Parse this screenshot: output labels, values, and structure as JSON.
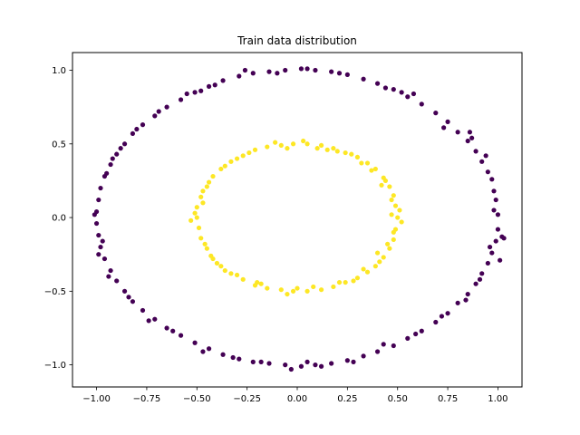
{
  "chart_data": {
    "type": "scatter",
    "title": "Train data distribution",
    "xlabel": "",
    "ylabel": "",
    "xlim": [
      -1.12,
      1.12
    ],
    "ylim": [
      -1.15,
      1.12
    ],
    "x_ticks": [
      {
        "value": -1.0,
        "label": "−1.00"
      },
      {
        "value": -0.75,
        "label": "−0.75"
      },
      {
        "value": -0.5,
        "label": "−0.50"
      },
      {
        "value": -0.25,
        "label": "−0.25"
      },
      {
        "value": 0.0,
        "label": "0.00"
      },
      {
        "value": 0.25,
        "label": "0.25"
      },
      {
        "value": 0.5,
        "label": "0.50"
      },
      {
        "value": 0.75,
        "label": "0.75"
      },
      {
        "value": 1.0,
        "label": "1.00"
      }
    ],
    "y_ticks": [
      {
        "value": -1.0,
        "label": "−1.0"
      },
      {
        "value": -0.5,
        "label": "−0.5"
      },
      {
        "value": 0.0,
        "label": "0.0"
      },
      {
        "value": 0.5,
        "label": "0.5"
      },
      {
        "value": 1.0,
        "label": "1.0"
      }
    ],
    "grid": false,
    "legend": "none",
    "series": [
      {
        "color": "#440154",
        "points": [
          [
            1.0,
            0.02
          ],
          [
            0.99,
            0.12
          ],
          [
            0.98,
            0.18
          ],
          [
            0.97,
            0.26
          ],
          [
            0.95,
            0.31
          ],
          [
            0.92,
            0.38
          ],
          [
            0.89,
            0.45
          ],
          [
            0.85,
            0.52
          ],
          [
            0.8,
            0.58
          ],
          [
            0.75,
            0.65
          ],
          [
            0.69,
            0.71
          ],
          [
            0.62,
            0.77
          ],
          [
            0.55,
            0.82
          ],
          [
            0.48,
            0.87
          ],
          [
            0.4,
            0.91
          ],
          [
            0.33,
            0.94
          ],
          [
            0.25,
            0.97
          ],
          [
            0.17,
            0.99
          ],
          [
            0.09,
            1.0
          ],
          [
            0.02,
            1.01
          ],
          [
            -0.06,
            1.0
          ],
          [
            -0.14,
            0.99
          ],
          [
            -0.22,
            0.98
          ],
          [
            -0.29,
            0.96
          ],
          [
            -0.37,
            0.93
          ],
          [
            -0.44,
            0.89
          ],
          [
            -0.51,
            0.85
          ],
          [
            -0.58,
            0.8
          ],
          [
            -0.65,
            0.75
          ],
          [
            -0.71,
            0.69
          ],
          [
            -0.77,
            0.63
          ],
          [
            -0.82,
            0.57
          ],
          [
            -0.86,
            0.5
          ],
          [
            -0.9,
            0.43
          ],
          [
            -0.93,
            0.36
          ],
          [
            -0.96,
            0.28
          ],
          [
            -0.98,
            0.2
          ],
          [
            -0.99,
            0.12
          ],
          [
            -1.0,
            0.04
          ],
          [
            -1.0,
            -0.04
          ],
          [
            -0.99,
            -0.12
          ],
          [
            -0.98,
            -0.2
          ],
          [
            -0.96,
            -0.28
          ],
          [
            -0.93,
            -0.36
          ],
          [
            -0.9,
            -0.43
          ],
          [
            -0.86,
            -0.5
          ],
          [
            -0.82,
            -0.57
          ],
          [
            -0.77,
            -0.63
          ],
          [
            -0.71,
            -0.69
          ],
          [
            -0.65,
            -0.75
          ],
          [
            -0.58,
            -0.8
          ],
          [
            -0.51,
            -0.85
          ],
          [
            -0.44,
            -0.89
          ],
          [
            -0.37,
            -0.93
          ],
          [
            -0.29,
            -0.96
          ],
          [
            -0.22,
            -0.98
          ],
          [
            -0.14,
            -0.99
          ],
          [
            -0.06,
            -1.0
          ],
          [
            0.02,
            -1.01
          ],
          [
            0.09,
            -1.0
          ],
          [
            0.17,
            -0.99
          ],
          [
            0.25,
            -0.97
          ],
          [
            0.33,
            -0.94
          ],
          [
            0.4,
            -0.91
          ],
          [
            0.48,
            -0.87
          ],
          [
            0.55,
            -0.82
          ],
          [
            0.62,
            -0.77
          ],
          [
            0.69,
            -0.71
          ],
          [
            0.75,
            -0.65
          ],
          [
            0.8,
            -0.58
          ],
          [
            0.85,
            -0.52
          ],
          [
            0.89,
            -0.45
          ],
          [
            0.92,
            -0.38
          ],
          [
            0.95,
            -0.31
          ],
          [
            0.97,
            -0.24
          ],
          [
            0.99,
            -0.16
          ],
          [
            1.0,
            -0.08
          ],
          [
            1.02,
            -0.13
          ],
          [
            1.01,
            -0.29
          ],
          [
            0.96,
            -0.2
          ],
          [
            0.94,
            0.42
          ],
          [
            0.86,
            0.58
          ],
          [
            0.73,
            0.61
          ],
          [
            0.58,
            0.84
          ],
          [
            0.44,
            0.88
          ],
          [
            0.21,
            0.98
          ],
          [
            0.05,
            1.01
          ],
          [
            -0.1,
            0.98
          ],
          [
            -0.26,
            1.0
          ],
          [
            -0.41,
            0.9
          ],
          [
            -0.55,
            0.84
          ],
          [
            -0.69,
            0.72
          ],
          [
            -0.8,
            0.6
          ],
          [
            -0.88,
            0.47
          ],
          [
            -0.95,
            0.3
          ],
          [
            -1.01,
            0.02
          ],
          [
            -0.97,
            -0.16
          ],
          [
            -0.94,
            -0.4
          ],
          [
            -0.84,
            -0.54
          ],
          [
            -0.74,
            -0.7
          ],
          [
            -0.62,
            -0.77
          ],
          [
            -0.47,
            -0.91
          ],
          [
            -0.32,
            -0.95
          ],
          [
            -0.18,
            -0.98
          ],
          [
            -0.03,
            -1.03
          ],
          [
            0.12,
            -1.01
          ],
          [
            0.28,
            -0.98
          ],
          [
            0.43,
            -0.86
          ],
          [
            0.59,
            -0.79
          ],
          [
            0.72,
            -0.67
          ],
          [
            0.84,
            -0.56
          ],
          [
            0.91,
            -0.42
          ],
          [
            0.98,
            0.05
          ],
          [
            1.03,
            -0.14
          ],
          [
            0.87,
            0.54
          ],
          [
            -0.92,
            0.4
          ],
          [
            -0.99,
            -0.25
          ],
          [
            0.52,
            0.85
          ],
          [
            -0.48,
            0.86
          ],
          [
            0.05,
            -0.98
          ]
        ]
      },
      {
        "color": "#fde725",
        "points": [
          [
            0.5,
            0.0
          ],
          [
            0.49,
            0.08
          ],
          [
            0.48,
            0.15
          ],
          [
            0.46,
            0.21
          ],
          [
            0.43,
            0.27
          ],
          [
            0.39,
            0.33
          ],
          [
            0.35,
            0.37
          ],
          [
            0.3,
            0.41
          ],
          [
            0.24,
            0.44
          ],
          [
            0.18,
            0.47
          ],
          [
            0.12,
            0.49
          ],
          [
            0.05,
            0.5
          ],
          [
            -0.02,
            0.5
          ],
          [
            -0.08,
            0.49
          ],
          [
            -0.15,
            0.48
          ],
          [
            -0.21,
            0.46
          ],
          [
            -0.27,
            0.42
          ],
          [
            -0.33,
            0.38
          ],
          [
            -0.38,
            0.33
          ],
          [
            -0.42,
            0.28
          ],
          [
            -0.45,
            0.21
          ],
          [
            -0.48,
            0.14
          ],
          [
            -0.5,
            0.07
          ],
          [
            -0.5,
            0.0
          ],
          [
            -0.49,
            -0.07
          ],
          [
            -0.48,
            -0.14
          ],
          [
            -0.45,
            -0.21
          ],
          [
            -0.42,
            -0.28
          ],
          [
            -0.38,
            -0.33
          ],
          [
            -0.33,
            -0.38
          ],
          [
            -0.27,
            -0.42
          ],
          [
            -0.21,
            -0.46
          ],
          [
            -0.15,
            -0.48
          ],
          [
            -0.08,
            -0.49
          ],
          [
            -0.02,
            -0.5
          ],
          [
            0.05,
            -0.5
          ],
          [
            0.12,
            -0.49
          ],
          [
            0.18,
            -0.47
          ],
          [
            0.24,
            -0.44
          ],
          [
            0.3,
            -0.41
          ],
          [
            0.35,
            -0.37
          ],
          [
            0.39,
            -0.33
          ],
          [
            0.43,
            -0.27
          ],
          [
            0.46,
            -0.21
          ],
          [
            0.48,
            -0.15
          ],
          [
            0.49,
            -0.08
          ],
          [
            0.52,
            -0.03
          ],
          [
            0.51,
            0.05
          ],
          [
            0.47,
            0.12
          ],
          [
            0.44,
            0.25
          ],
          [
            0.37,
            0.32
          ],
          [
            0.27,
            0.43
          ],
          [
            0.15,
            0.46
          ],
          [
            0.03,
            0.52
          ],
          [
            -0.11,
            0.51
          ],
          [
            -0.24,
            0.44
          ],
          [
            -0.36,
            0.35
          ],
          [
            -0.44,
            0.24
          ],
          [
            -0.51,
            0.03
          ],
          [
            -0.53,
            -0.02
          ],
          [
            -0.46,
            -0.18
          ],
          [
            -0.4,
            -0.31
          ],
          [
            -0.3,
            -0.39
          ],
          [
            -0.18,
            -0.45
          ],
          [
            -0.05,
            -0.52
          ],
          [
            0.08,
            -0.47
          ],
          [
            0.21,
            -0.44
          ],
          [
            0.33,
            -0.35
          ],
          [
            0.41,
            -0.3
          ],
          [
            0.45,
            -0.18
          ],
          [
            0.47,
            0.02
          ],
          [
            0.42,
            0.22
          ],
          [
            0.2,
            0.45
          ],
          [
            -0.3,
            0.4
          ],
          [
            -0.47,
            0.1
          ],
          [
            -0.36,
            -0.36
          ],
          [
            0.0,
            -0.48
          ],
          [
            0.28,
            -0.43
          ],
          [
            0.48,
            -0.1
          ],
          [
            0.4,
            -0.24
          ],
          [
            -0.2,
            -0.44
          ],
          [
            -0.43,
            -0.26
          ],
          [
            -0.47,
            0.18
          ],
          [
            -0.05,
            0.47
          ],
          [
            0.1,
            0.47
          ],
          [
            0.32,
            0.37
          ]
        ]
      }
    ]
  }
}
